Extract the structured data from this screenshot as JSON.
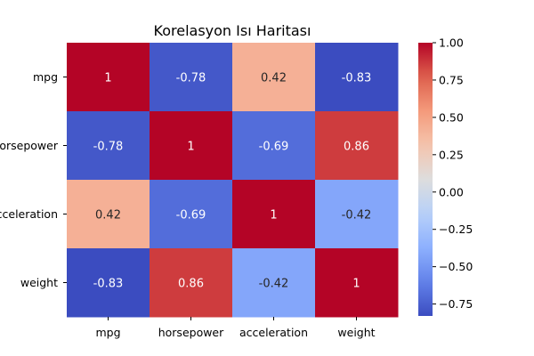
{
  "chart_data": {
    "type": "heatmap",
    "title": "Korelasyon Isı Haritası",
    "rows": [
      "mpg",
      "horsepower",
      "acceleration",
      "weight"
    ],
    "columns": [
      "mpg",
      "horsepower",
      "acceleration",
      "weight"
    ],
    "values": [
      [
        1.0,
        -0.78,
        0.42,
        -0.83
      ],
      [
        -0.78,
        1.0,
        -0.69,
        0.86
      ],
      [
        0.42,
        -0.69,
        1.0,
        -0.42
      ],
      [
        -0.83,
        0.86,
        -0.42,
        1.0
      ]
    ],
    "value_labels": [
      [
        "1",
        "-0.78",
        "0.42",
        "-0.83"
      ],
      [
        "-0.78",
        "1",
        "-0.69",
        "0.86"
      ],
      [
        "0.42",
        "-0.69",
        "1",
        "-0.42"
      ],
      [
        "-0.83",
        "0.86",
        "-0.42",
        "1"
      ]
    ],
    "colormap": "coolwarm",
    "colorbar": {
      "range": [
        -0.83,
        1.0
      ],
      "ticks": [
        1.0,
        0.75,
        0.5,
        0.25,
        0.0,
        -0.25,
        -0.5,
        -0.75
      ],
      "tick_labels": [
        "1.00",
        "0.75",
        "0.50",
        "0.25",
        "0.00",
        "−0.25",
        "−0.50",
        "−0.75"
      ],
      "placement": "right"
    }
  }
}
